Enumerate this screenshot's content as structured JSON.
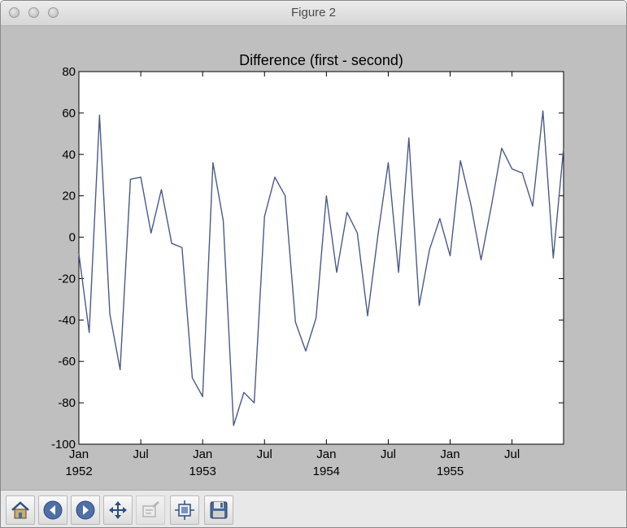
{
  "window": {
    "title": "Figure 2"
  },
  "toolbar": {
    "buttons": [
      {
        "name": "home-button",
        "icon": "home-icon"
      },
      {
        "name": "back-button",
        "icon": "arrow-left-icon"
      },
      {
        "name": "forward-button",
        "icon": "arrow-right-icon"
      },
      {
        "name": "pan-button",
        "icon": "move-icon"
      },
      {
        "name": "zoom-button",
        "icon": "zoom-rect-icon",
        "disabled": true
      },
      {
        "name": "configure-subplots-button",
        "icon": "subplots-icon"
      },
      {
        "name": "save-button",
        "icon": "floppy-disk-icon"
      }
    ]
  },
  "chart_data": {
    "type": "line",
    "title": "Difference (first - second)",
    "xlabel": "",
    "ylabel": "",
    "ylim": [
      -100,
      80
    ],
    "yticks": [
      80,
      60,
      40,
      20,
      0,
      -20,
      -40,
      -60,
      -80,
      -100
    ],
    "xlim": [
      "1952-01",
      "1955-12"
    ],
    "xticks": [
      {
        "date": "1952-01",
        "label": "Jan",
        "year": "1952"
      },
      {
        "date": "1952-07",
        "label": "Jul",
        "year": ""
      },
      {
        "date": "1953-01",
        "label": "Jan",
        "year": "1953"
      },
      {
        "date": "1953-07",
        "label": "Jul",
        "year": ""
      },
      {
        "date": "1954-01",
        "label": "Jan",
        "year": "1954"
      },
      {
        "date": "1954-07",
        "label": "Jul",
        "year": ""
      },
      {
        "date": "1955-01",
        "label": "Jan",
        "year": "1955"
      },
      {
        "date": "1955-07",
        "label": "Jul",
        "year": ""
      }
    ],
    "line_color": "#4b5a87",
    "grid": false,
    "series": [
      {
        "x": [
          "1952-01",
          "1952-02",
          "1952-03",
          "1952-04",
          "1952-05",
          "1952-06",
          "1952-07",
          "1952-08",
          "1952-09",
          "1952-10",
          "1952-11",
          "1952-12",
          "1953-01",
          "1953-02",
          "1953-03",
          "1953-04",
          "1953-05",
          "1953-06",
          "1953-07",
          "1953-08",
          "1953-09",
          "1953-10",
          "1953-11",
          "1953-12",
          "1954-01",
          "1954-02",
          "1954-03",
          "1954-04",
          "1954-05",
          "1954-06",
          "1954-07",
          "1954-08",
          "1954-09",
          "1954-10",
          "1954-11",
          "1954-12",
          "1955-01",
          "1955-02",
          "1955-03",
          "1955-04",
          "1955-05",
          "1955-06",
          "1955-07",
          "1955-08",
          "1955-09",
          "1955-10",
          "1955-11",
          "1955-12"
        ],
        "values": [
          -8,
          -46,
          59,
          -37,
          -64,
          28,
          29,
          2,
          23,
          -3,
          -5,
          -68,
          -77,
          36,
          8,
          -91,
          -75,
          -80,
          10,
          29,
          20,
          -41,
          -55,
          -39,
          20,
          -17,
          12,
          2,
          -38,
          1,
          36,
          -17,
          48,
          -33,
          -6,
          9,
          -9,
          37,
          16,
          -11,
          15,
          43,
          33,
          31,
          15,
          61,
          -10,
          43
        ]
      }
    ]
  }
}
